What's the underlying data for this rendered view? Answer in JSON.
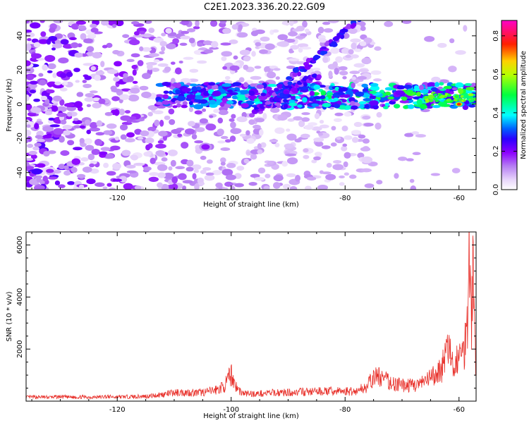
{
  "title": "C2E1.2023.336.20.22.G09",
  "chart_data": [
    {
      "type": "heatmap",
      "title": "C2E1.2023.336.20.22.G09",
      "xlabel": "Height of straight line (km)",
      "ylabel": "Frequency (Hz)",
      "xlim": [
        -136,
        -57
      ],
      "ylim": [
        -50,
        49
      ],
      "x_ticks": [
        -120,
        -100,
        -80,
        -60
      ],
      "y_ticks": [
        -40,
        -20,
        0,
        20,
        40
      ],
      "colorbar": {
        "label": "Normalized spectral amplitude",
        "range": [
          0,
          0.88
        ],
        "ticks": [
          0.0,
          0.2,
          0.4,
          0.6,
          0.8
        ],
        "colormap": "rainbow",
        "colors": [
          "#ffffff",
          "#cfaef7",
          "#8b00ff",
          "#0000ff",
          "#00ffff",
          "#00ff00",
          "#ffff00",
          "#ff0000",
          "#ff00ff"
        ]
      },
      "features": [
        {
          "name": "main_band",
          "x_range": [
            -113,
            -57
          ],
          "y_center": 5,
          "peak": [
            -60,
            0
          ],
          "peak_value": 0.88
        },
        {
          "name": "rising_track",
          "from": [
            -93,
            5
          ],
          "to": [
            -78,
            48
          ]
        },
        {
          "name": "descending_track",
          "from": [
            -96,
            -5
          ],
          "to": [
            -85,
            17
          ]
        },
        {
          "name": "isolated_blob",
          "at": [
            -104.5,
            -25
          ],
          "value": 0.18
        }
      ],
      "grid": false
    },
    {
      "type": "line",
      "xlabel": "Height of straight line (km)",
      "ylabel": "SNR (10 * v/v)",
      "xlim": [
        -136,
        -57
      ],
      "ylim": [
        0,
        6500
      ],
      "x_ticks": [
        -120,
        -100,
        -80,
        -60
      ],
      "y_ticks": [
        2000,
        4000,
        6000
      ],
      "color": "#e8302a",
      "series": [
        {
          "x": [
            -136,
            -134,
            -132,
            -130,
            -128,
            -126,
            -124,
            -122,
            -120,
            -118,
            -116,
            -114,
            -112,
            -110,
            -108,
            -106,
            -104,
            -102,
            -101,
            -100,
            -99,
            -98,
            -96,
            -94,
            -92,
            -90,
            -88,
            -86,
            -84,
            -82,
            -80,
            -78,
            -76,
            -75,
            -74,
            -72,
            -70,
            -68,
            -66,
            -65,
            -64,
            -63,
            -62,
            -61,
            -60.5,
            -60,
            -59.5,
            -59,
            -58.7,
            -58.5,
            -58.2,
            -58,
            -57.8,
            -57.5,
            -57.2,
            -57
          ],
          "y": [
            150,
            160,
            150,
            170,
            150,
            160,
            150,
            170,
            160,
            170,
            180,
            200,
            260,
            320,
            340,
            320,
            360,
            480,
            620,
            1050,
            500,
            300,
            280,
            300,
            330,
            330,
            350,
            360,
            380,
            380,
            380,
            380,
            600,
            900,
            950,
            700,
            600,
            620,
            700,
            900,
            1000,
            1300,
            2100,
            1200,
            1600,
            1800,
            1650,
            2200,
            3000,
            3500,
            6400,
            4500,
            3300,
            5100,
            2500,
            1000
          ]
        }
      ],
      "grid": false
    }
  ]
}
